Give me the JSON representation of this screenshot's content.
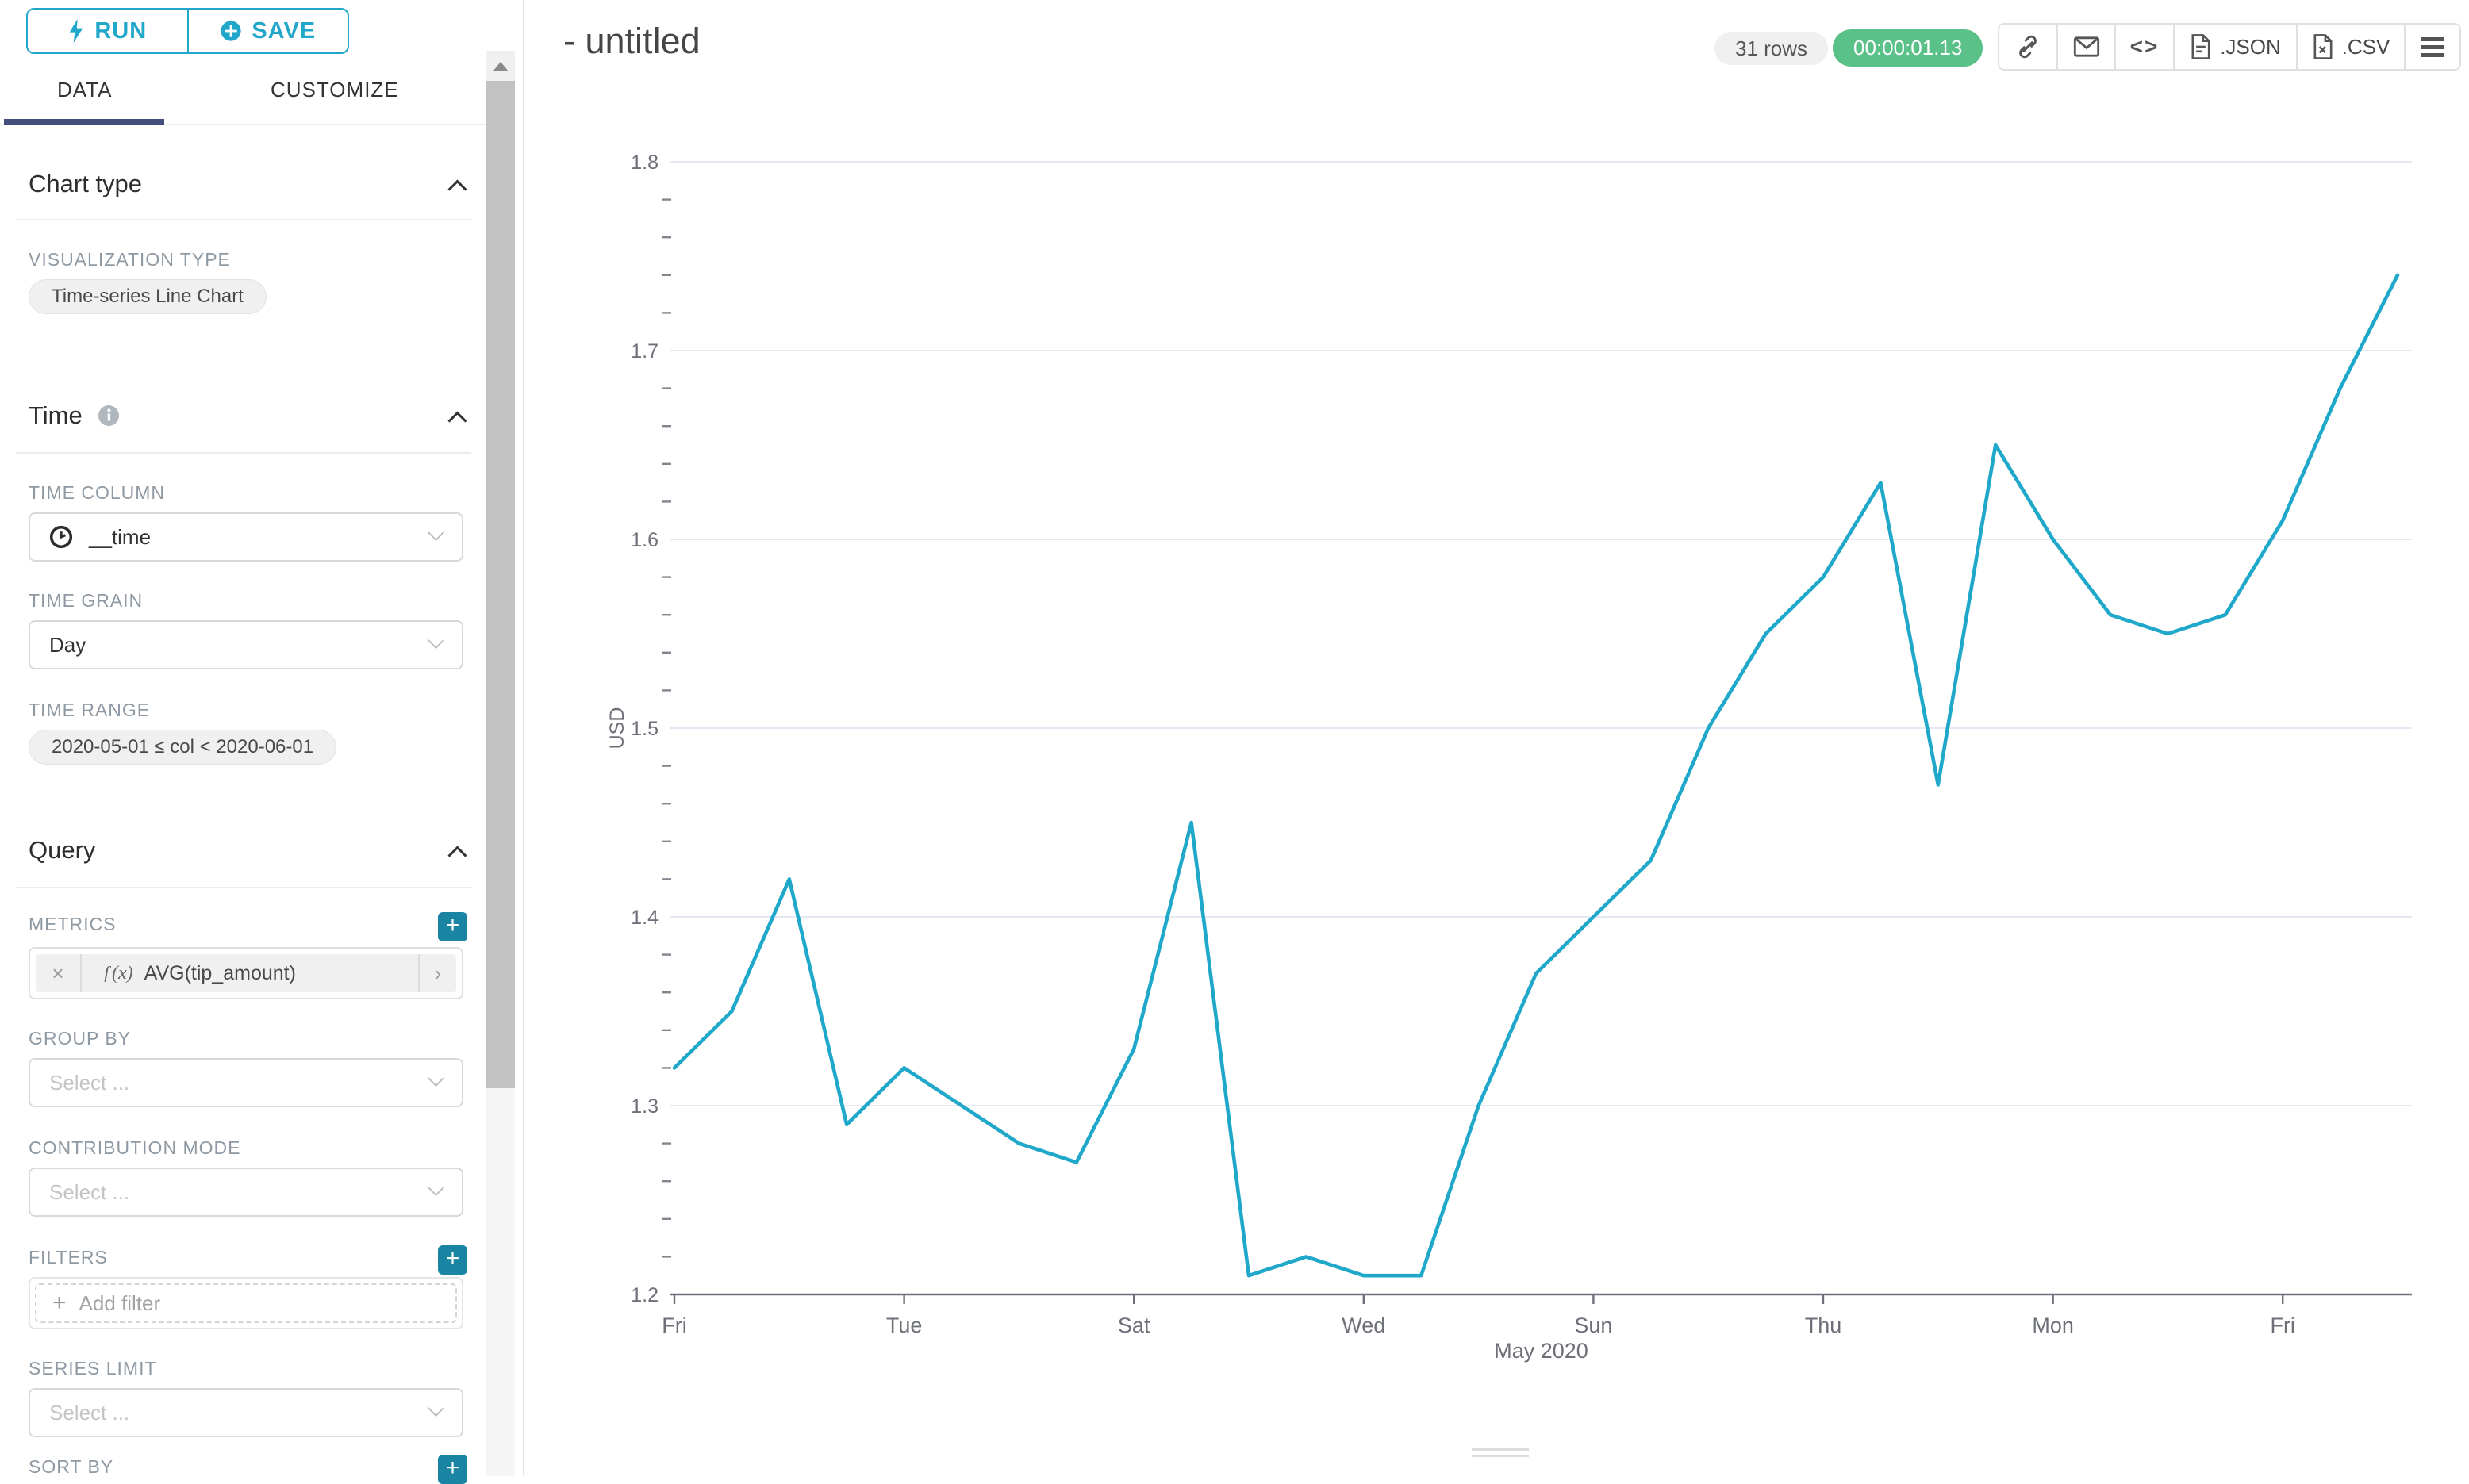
{
  "sidebar": {
    "run_label": "RUN",
    "save_label": "SAVE",
    "tabs": {
      "data": "DATA",
      "customize": "CUSTOMIZE"
    },
    "chart_type_section": {
      "heading": "Chart type",
      "visualization_type_label": "VISUALIZATION TYPE",
      "visualization_type_value": "Time-series Line Chart"
    },
    "time_section": {
      "heading": "Time",
      "time_column_label": "TIME COLUMN",
      "time_column_value": "__time",
      "time_grain_label": "TIME GRAIN",
      "time_grain_value": "Day",
      "time_range_label": "TIME RANGE",
      "time_range_value": "2020-05-01 ≤ col < 2020-06-01"
    },
    "query_section": {
      "heading": "Query",
      "metrics_label": "METRICS",
      "metric_fx": "ƒ(x)",
      "metric_value": "AVG(tip_amount)",
      "metric_remove": "×",
      "metric_caret": "›",
      "group_by_label": "GROUP BY",
      "group_by_placeholder": "Select ...",
      "contribution_mode_label": "CONTRIBUTION MODE",
      "contribution_mode_placeholder": "Select ...",
      "filters_label": "FILTERS",
      "add_filter_plus": "+",
      "add_filter_text": "Add filter",
      "series_limit_label": "SERIES LIMIT",
      "series_limit_placeholder": "Select ...",
      "sort_by_label": "SORT BY",
      "plus_button": "+"
    }
  },
  "header": {
    "title": "- untitled",
    "rows_badge": "31 rows",
    "timer_badge": "00:00:01.13",
    "export_json_label": ".JSON",
    "export_csv_label": ".CSV",
    "code_glyph": "<>"
  },
  "colors": {
    "accent_teal": "#20A7C9",
    "plus_button_teal": "#1A85A2",
    "tab_ink": "#434E7C",
    "timer_green": "#5AC189",
    "line": "#1FA8C9",
    "axis_text": "#6E7079",
    "gridline": "#E3E8F3"
  },
  "chart_data": {
    "type": "line",
    "x": [
      "2020-05-01",
      "2020-05-02",
      "2020-05-03",
      "2020-05-04",
      "2020-05-05",
      "2020-05-06",
      "2020-05-07",
      "2020-05-08",
      "2020-05-09",
      "2020-05-10",
      "2020-05-11",
      "2020-05-12",
      "2020-05-13",
      "2020-05-14",
      "2020-05-15",
      "2020-05-16",
      "2020-05-17",
      "2020-05-18",
      "2020-05-19",
      "2020-05-20",
      "2020-05-21",
      "2020-05-22",
      "2020-05-23",
      "2020-05-24",
      "2020-05-25",
      "2020-05-26",
      "2020-05-27",
      "2020-05-28",
      "2020-05-29",
      "2020-05-30",
      "2020-05-31"
    ],
    "series": [
      {
        "name": "AVG(tip_amount)",
        "values": [
          1.32,
          1.35,
          1.42,
          1.29,
          1.32,
          1.3,
          1.28,
          1.27,
          1.33,
          1.45,
          1.21,
          1.22,
          1.21,
          1.21,
          1.3,
          1.37,
          1.4,
          1.43,
          1.5,
          1.55,
          1.58,
          1.63,
          1.47,
          1.65,
          1.6,
          1.56,
          1.55,
          1.56,
          1.61,
          1.68,
          1.74
        ]
      }
    ],
    "xlabel": "May 2020",
    "ylabel": "USD",
    "ylim": [
      1.2,
      1.8
    ],
    "y_major_step": 0.1,
    "y_minor_step": 0.02,
    "x_tick_day_indexes": [
      0,
      4,
      8,
      12,
      16,
      20,
      24,
      28
    ],
    "x_tick_labels": [
      "Fri",
      "Tue",
      "Sat",
      "Wed",
      "Sun",
      "Thu",
      "Mon",
      "Fri"
    ],
    "grid": "horizontal-only",
    "legend": "none"
  }
}
